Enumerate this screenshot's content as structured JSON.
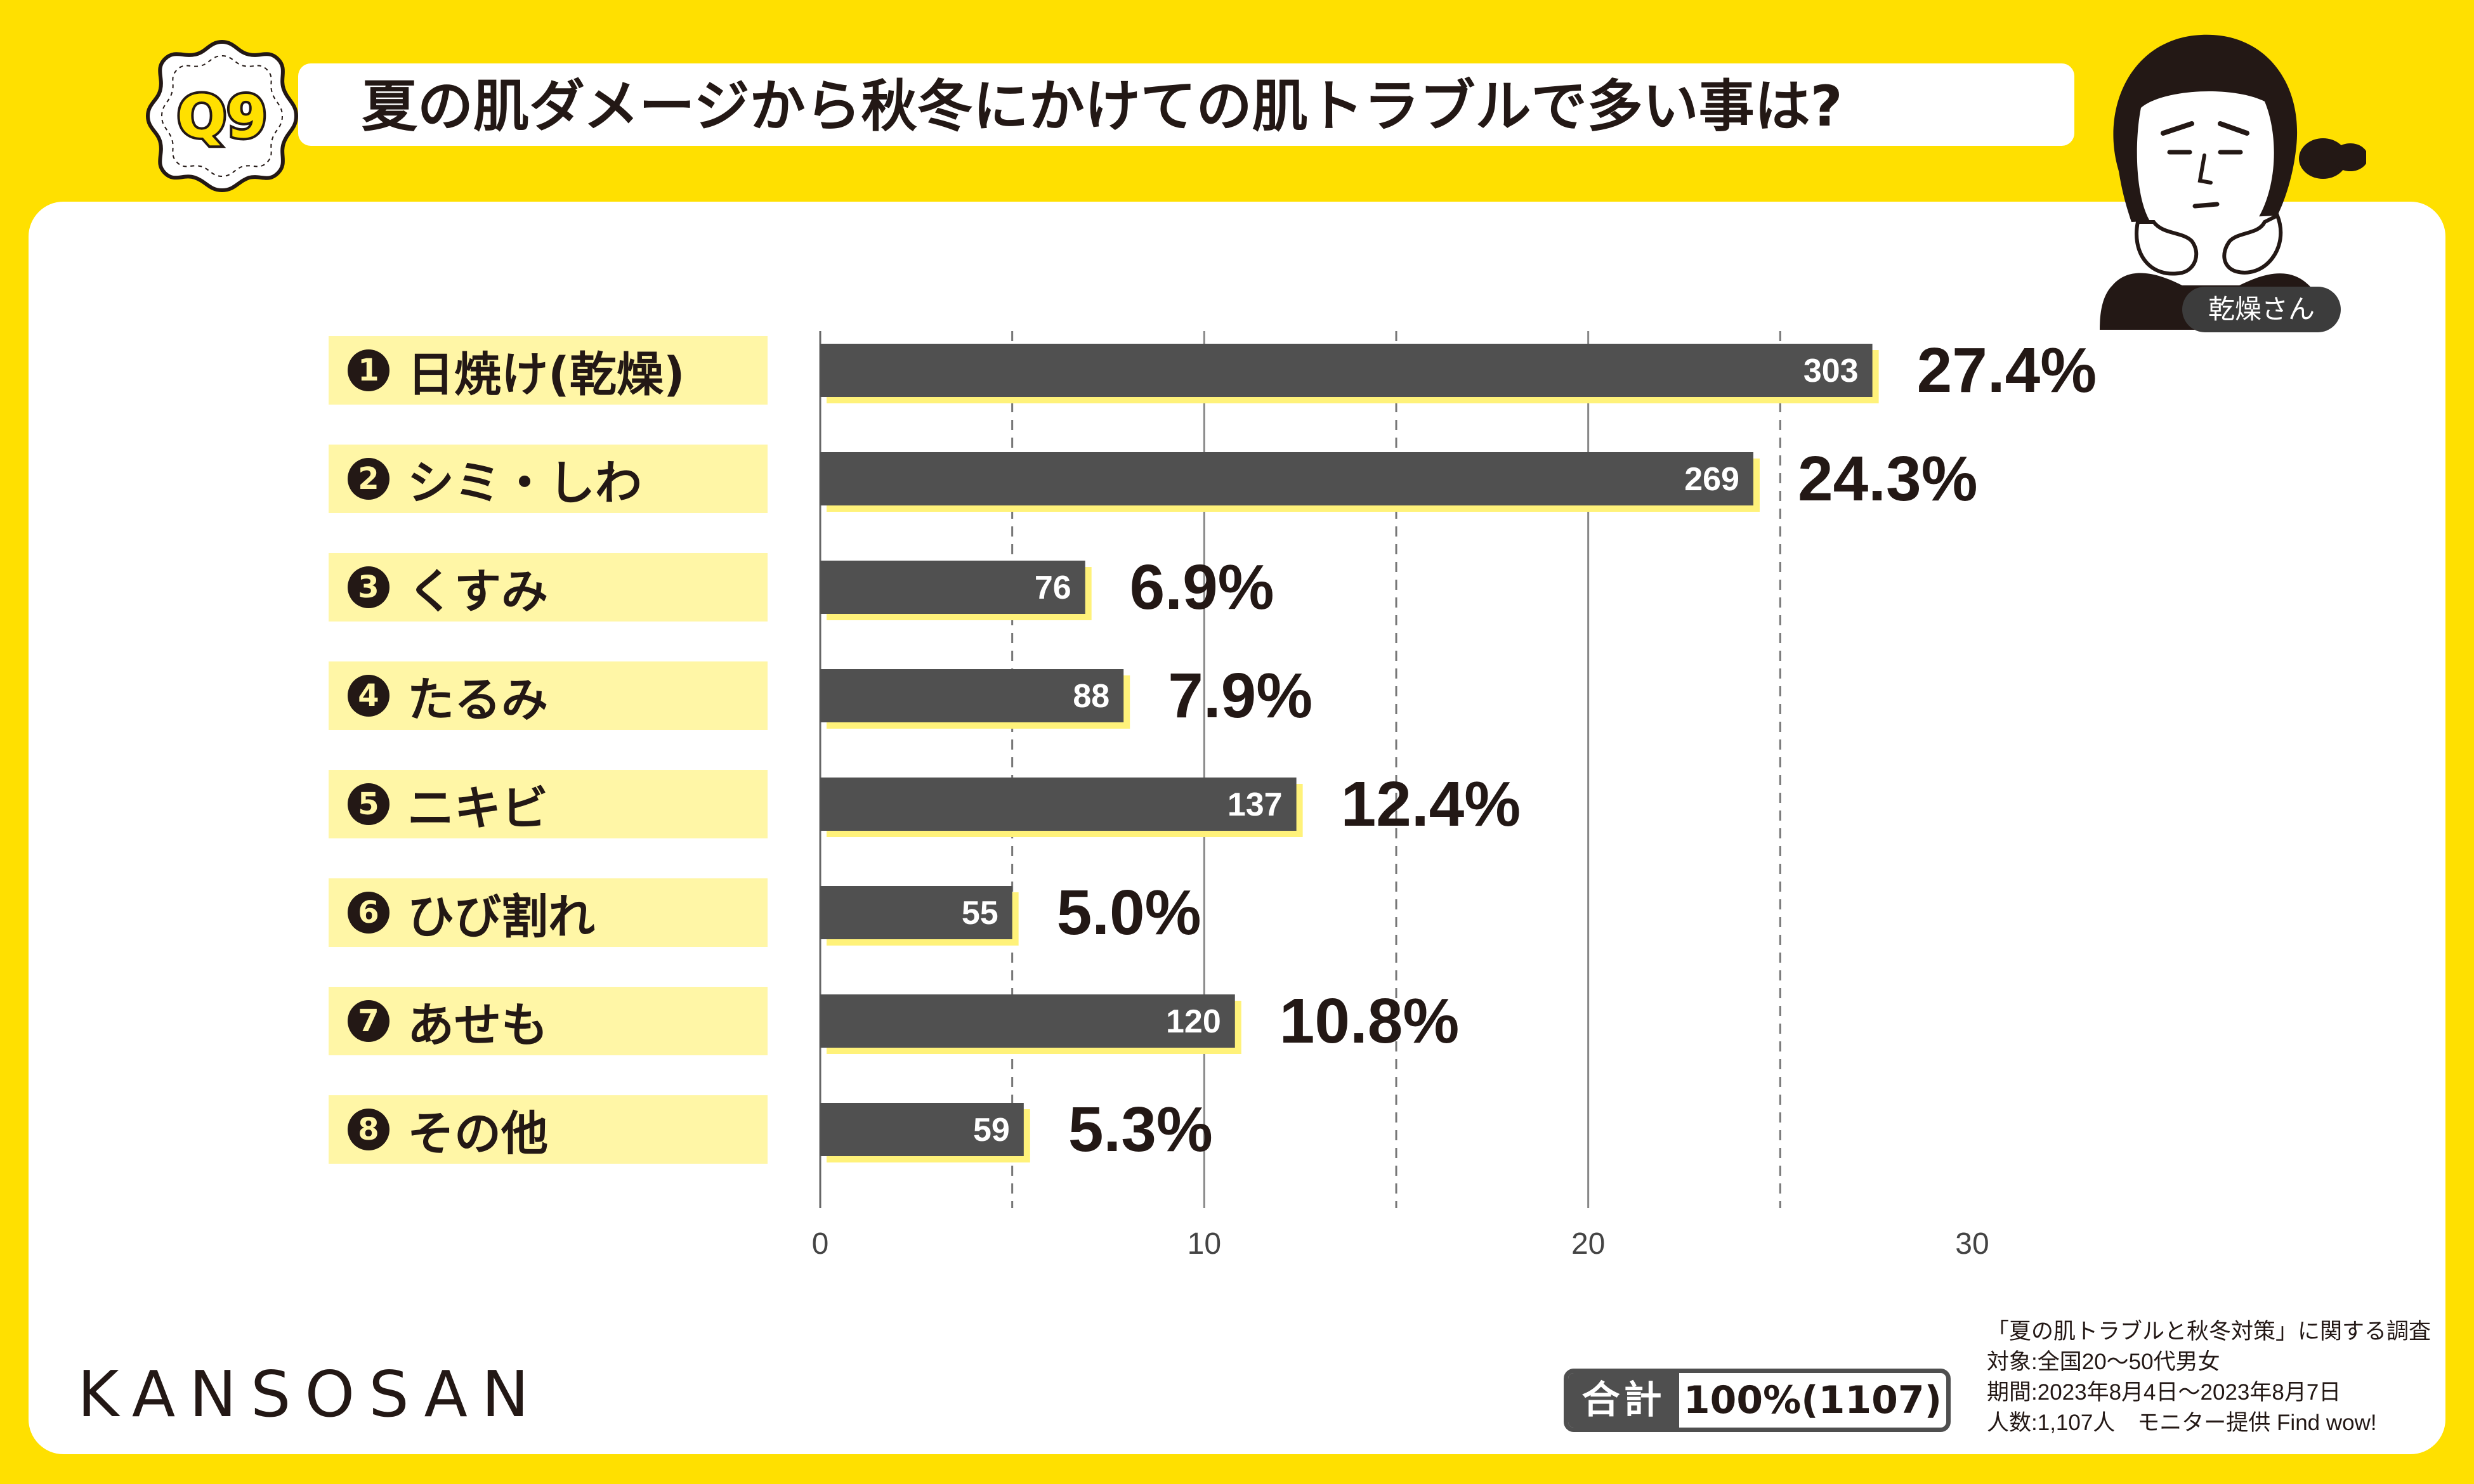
{
  "header": {
    "badge": "Q9",
    "title": "夏の肌ダメージから秋冬にかけての肌トラブルで多い事は?"
  },
  "character": {
    "tag": "乾燥さん"
  },
  "chart_data": {
    "type": "bar",
    "orientation": "horizontal",
    "categories": [
      {
        "rank": "1",
        "label": "日焼け(乾燥)",
        "count": 303,
        "percent": 27.4,
        "percent_label": "27.4%"
      },
      {
        "rank": "2",
        "label": "シミ・しわ",
        "count": 269,
        "percent": 24.3,
        "percent_label": "24.3%"
      },
      {
        "rank": "3",
        "label": "くすみ",
        "count": 76,
        "percent": 6.9,
        "percent_label": "6.9%"
      },
      {
        "rank": "4",
        "label": "たるみ",
        "count": 88,
        "percent": 7.9,
        "percent_label": "7.9%"
      },
      {
        "rank": "5",
        "label": "ニキビ",
        "count": 137,
        "percent": 12.4,
        "percent_label": "12.4%"
      },
      {
        "rank": "6",
        "label": "ひび割れ",
        "count": 55,
        "percent": 5.0,
        "percent_label": "5.0%"
      },
      {
        "rank": "7",
        "label": "あせも",
        "count": 120,
        "percent": 10.8,
        "percent_label": "10.8%"
      },
      {
        "rank": "8",
        "label": "その他",
        "count": 59,
        "percent": 5.3,
        "percent_label": "5.3%"
      }
    ],
    "xlim": [
      0,
      30
    ],
    "xticks": [
      "0",
      "10",
      "20",
      "30"
    ],
    "grid_major": [
      10,
      20
    ],
    "grid_minor_dashed": [
      5,
      15,
      25
    ]
  },
  "brand": {
    "logo": "KANSOSAN"
  },
  "total": {
    "label": "合計",
    "value": "100%(1107)"
  },
  "survey": {
    "lines": [
      "「夏の肌トラブルと秋冬対策」に関する調査",
      "対象:全国20〜50代男女",
      "期間:2023年8月4日〜2023年8月7日",
      "人数:1,107人　モニター提供 Find wow!"
    ]
  },
  "colors": {
    "bar": "#505050",
    "bar_shadow": "#FFF27A",
    "accent_yellow": "#FFE000",
    "label_bg": "#FFF6A6",
    "text": "#231815"
  }
}
